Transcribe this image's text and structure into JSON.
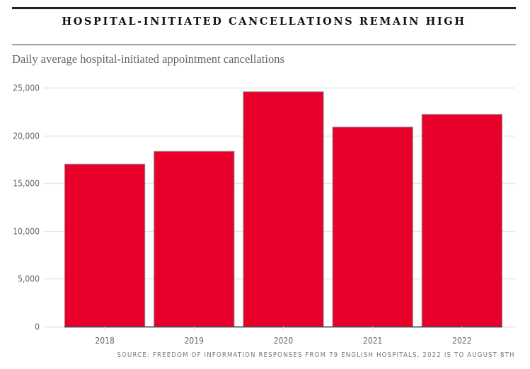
{
  "header": {
    "title": "HOSPITAL-INITIATED CANCELLATIONS REMAIN HIGH",
    "subtitle": "Daily average hospital-initiated appointment cancellations"
  },
  "footer": {
    "source": "SOURCE: FREEDOM OF INFORMATION RESPONSES FROM 79 ENGLISH HOSPITALS, 2022 IS TO AUGUST 8TH"
  },
  "colors": {
    "bar": "#e8002a",
    "bar_stroke": "#8a8a8a",
    "gridline": "#e6e6e6",
    "baseline": "#333333"
  },
  "chart_data": {
    "type": "bar",
    "title": "HOSPITAL-INITIATED CANCELLATIONS REMAIN HIGH",
    "subtitle": "Daily average hospital-initiated appointment cancellations",
    "xlabel": "",
    "ylabel": "",
    "categories": [
      "2018",
      "2019",
      "2020",
      "2021",
      "2022"
    ],
    "values": [
      17030,
      18370,
      24610,
      20910,
      22240
    ],
    "ylim": [
      0,
      25000
    ],
    "yticks": [
      0,
      5000,
      10000,
      15000,
      20000,
      25000
    ],
    "ytick_labels": [
      "0",
      "5,000",
      "10,000",
      "15,000",
      "20,000",
      "25,000"
    ],
    "grid": true,
    "legend": "none"
  }
}
